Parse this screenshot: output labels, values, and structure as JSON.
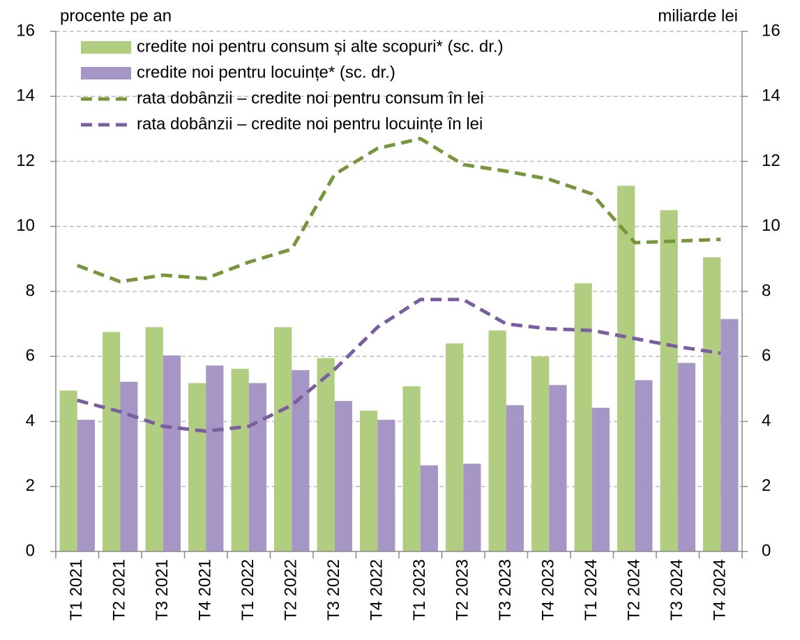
{
  "chart_data": {
    "type": "bar_line",
    "y_label": "procente pe an",
    "y2_label": "miliarde lei",
    "categories": [
      "T1 2021",
      "T2 2021",
      "T3 2021",
      "T4 2021",
      "T1 2022",
      "T2 2022",
      "T3 2022",
      "T4 2022",
      "T1 2023",
      "T2 2023",
      "T3 2023",
      "T4 2023",
      "T1 2024",
      "T2 2024",
      "T3 2024",
      "T4 2024"
    ],
    "series": [
      {
        "name": "credite noi pentru consum și alte scopuri* (sc. dr.)",
        "type": "bar",
        "axis": "y2",
        "color": "#b1cd80",
        "values": [
          4.95,
          6.75,
          6.9,
          5.18,
          5.62,
          6.9,
          5.95,
          4.33,
          5.08,
          6.4,
          6.8,
          6.0,
          8.25,
          11.25,
          10.5,
          9.05
        ]
      },
      {
        "name": "credite noi pentru locuințe* (sc. dr.)",
        "type": "bar",
        "axis": "y2",
        "color": "#a596c6",
        "values": [
          4.05,
          5.22,
          6.03,
          5.72,
          5.18,
          5.58,
          4.63,
          4.05,
          2.65,
          2.7,
          4.5,
          5.12,
          4.42,
          5.27,
          5.8,
          7.15
        ]
      },
      {
        "name": "rata dobânzii – credite noi pentru consum în lei",
        "type": "line",
        "axis": "y",
        "color": "#77953c",
        "values": [
          8.8,
          8.3,
          8.5,
          8.4,
          8.9,
          9.3,
          11.6,
          12.4,
          12.7,
          11.9,
          11.7,
          11.45,
          11.0,
          9.5,
          9.55,
          9.6
        ]
      },
      {
        "name": "rata dobânzii – credite noi pentru locuințe în lei",
        "type": "line",
        "axis": "y",
        "color": "#7a5fa0",
        "values": [
          4.65,
          4.3,
          3.85,
          3.7,
          3.85,
          4.5,
          5.6,
          6.9,
          7.75,
          7.75,
          7.0,
          6.85,
          6.8,
          6.55,
          6.3,
          6.1
        ]
      }
    ],
    "ylim": [
      0,
      16
    ],
    "yticks": [
      0,
      2,
      4,
      6,
      8,
      10,
      12,
      14,
      16
    ],
    "y2lim": [
      0,
      16
    ],
    "y2ticks": [
      0,
      2,
      4,
      6,
      8,
      10,
      12,
      14,
      16
    ],
    "grid": true
  }
}
